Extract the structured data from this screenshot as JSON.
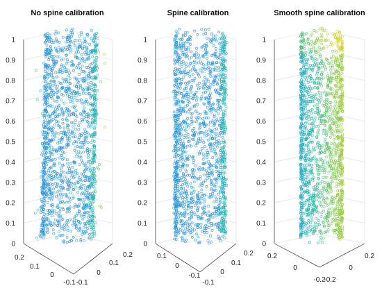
{
  "chart_data": [
    {
      "type": "scatter3d",
      "title": "No spine calibration",
      "zlim": [
        0,
        1
      ],
      "z_ticks": [
        "0",
        "0.1",
        "0.2",
        "0.3",
        "0.4",
        "0.5",
        "0.6",
        "0.7",
        "0.8",
        "0.9",
        "1"
      ],
      "x_ticks": [
        "0.2",
        "0.1",
        "0",
        "-0.1"
      ],
      "y_ticks": [
        "-0.1",
        "0",
        "0.1",
        "0.2"
      ],
      "colormap": [
        "#2f6fdc",
        "#27a3d8",
        "#22b8a6",
        "#7cc94a",
        "#d7d230"
      ],
      "marker": "open-circle",
      "grid": true
    },
    {
      "type": "scatter3d",
      "title": "Spine calibration",
      "zlim": [
        0,
        1
      ],
      "z_ticks": [
        "0",
        "0.1",
        "0.2",
        "0.3",
        "0.4",
        "0.5",
        "0.6",
        "0.7",
        "0.8",
        "0.9",
        "1"
      ],
      "x_ticks": [
        "0.1",
        "0",
        "-0.1"
      ],
      "y_ticks": [
        "-0.1",
        "0",
        "0.1",
        "0.2"
      ],
      "colormap": [
        "#2f6fdc",
        "#27a3d8",
        "#22b8a6",
        "#7cc94a",
        "#d7d230"
      ],
      "marker": "open-circle",
      "grid": true
    },
    {
      "type": "scatter3d",
      "title": "Smooth spine calibration",
      "zlim": [
        0,
        1
      ],
      "z_ticks": [
        "0",
        "0.1",
        "0.2",
        "0.3",
        "0.4",
        "0.5",
        "0.6",
        "0.7",
        "0.8",
        "0.9",
        "1"
      ],
      "x_ticks": [
        "0.2",
        "0",
        "-0.2"
      ],
      "y_ticks": [
        "-0.2",
        "0",
        "0.2"
      ],
      "colormap": [
        "#2f6fdc",
        "#27a3d8",
        "#22b8a6",
        "#7cc94a",
        "#d7d230"
      ],
      "marker": "open-circle",
      "grid": true
    }
  ]
}
